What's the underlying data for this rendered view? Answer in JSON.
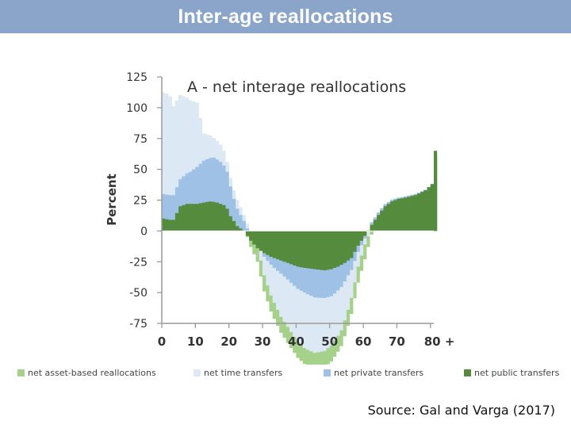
{
  "slide_title": "Inter-age reallocations",
  "source_text": "Source: Gal and Varga (2017)",
  "chart_data": {
    "type": "area",
    "title": "A - net interage reallocations",
    "xlabel": "",
    "ylabel": "Percent",
    "xlim": [
      0,
      81
    ],
    "ylim": [
      -75,
      125
    ],
    "x_ticks": [
      0,
      10,
      20,
      30,
      40,
      50,
      60,
      70,
      80
    ],
    "x_tick_labels": [
      "0",
      "10",
      "20",
      "30",
      "40",
      "50",
      "60",
      "70",
      "80 +"
    ],
    "y_ticks": [
      125,
      100,
      75,
      50,
      25,
      0,
      -25,
      -50,
      -75
    ],
    "y_tick_labels": [
      "125",
      "100",
      "75",
      "50",
      "25",
      "0",
      "-25",
      "-50",
      "-75"
    ],
    "grid": false,
    "legend_position": "bottom",
    "series": [
      {
        "name": "net asset-based reallocations",
        "color": "#a6d18b",
        "x": [
          0,
          5,
          10,
          15,
          17,
          19,
          20,
          21,
          22,
          24,
          26,
          28,
          30,
          35,
          40,
          45,
          50,
          55,
          58,
          60,
          62,
          64,
          66,
          70,
          75,
          80,
          81
        ],
        "values": [
          0,
          0,
          0,
          0,
          0,
          -1,
          -2,
          -4,
          -6,
          -10,
          -12,
          -13,
          -13,
          -13,
          -13,
          -13,
          -13,
          -13,
          -13,
          -12,
          -5,
          0,
          0,
          0,
          0,
          0,
          0
        ]
      },
      {
        "name": "net time transfers",
        "color": "#dce9f4",
        "x": [
          0,
          1,
          2,
          3,
          5,
          8,
          10,
          12,
          15,
          17,
          18,
          19,
          20,
          21,
          22,
          24,
          26,
          28,
          30,
          32,
          35,
          38,
          40,
          42,
          45,
          48,
          50,
          53,
          55,
          58,
          60,
          62,
          65,
          70,
          75,
          80,
          81
        ],
        "values": [
          82,
          82,
          80,
          72,
          68,
          58,
          52,
          22,
          16,
          14,
          12,
          8,
          7,
          7,
          7,
          5,
          3,
          0,
          -15,
          -25,
          -35,
          -40,
          -43,
          -45,
          -45,
          -43,
          -40,
          -35,
          -28,
          -12,
          -5,
          -5,
          -5,
          -5,
          -5,
          -5,
          -5
        ]
      },
      {
        "name": "net private transfers",
        "color": "#9fc1e6",
        "x": [
          0,
          3,
          5,
          8,
          10,
          12,
          15,
          17,
          19,
          20,
          21,
          22,
          24,
          26,
          28,
          30,
          33,
          36,
          40,
          45,
          50,
          53,
          55,
          58,
          60,
          62,
          65,
          70,
          75,
          80,
          81
        ],
        "values": [
          20,
          20,
          22,
          26,
          30,
          34,
          36,
          34,
          30,
          24,
          18,
          14,
          8,
          4,
          2,
          -3,
          -8,
          -12,
          -18,
          -23,
          -22,
          -18,
          -12,
          -5,
          -2,
          2,
          2,
          1,
          1,
          0,
          -4
        ]
      },
      {
        "name": "net public transfers",
        "color": "#548b3d",
        "x": [
          0,
          2,
          3,
          5,
          7,
          10,
          12,
          14,
          16,
          18,
          19,
          20,
          21,
          22,
          24,
          26,
          28,
          30,
          32,
          35,
          38,
          40,
          42,
          45,
          48,
          50,
          52,
          54,
          56,
          58,
          60,
          62,
          64,
          66,
          68,
          70,
          72,
          75,
          78,
          80,
          81
        ],
        "values": [
          10,
          9,
          9,
          20,
          22,
          22,
          23,
          24,
          23,
          21,
          18,
          12,
          8,
          4,
          0,
          -8,
          -14,
          -18,
          -21,
          -24,
          -27,
          -29,
          -30,
          -31,
          -32,
          -31,
          -29,
          -26,
          -22,
          -12,
          -4,
          5,
          13,
          20,
          24,
          26,
          27,
          29,
          33,
          38,
          65
        ]
      }
    ]
  }
}
